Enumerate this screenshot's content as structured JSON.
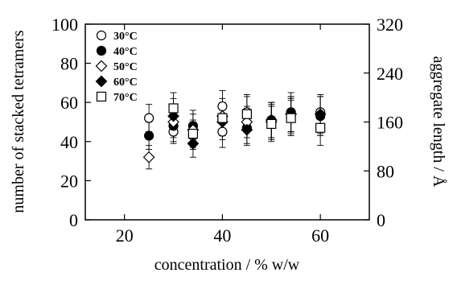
{
  "chart_data": {
    "type": "scatter",
    "xlabel": "concentration / % w/w",
    "ylabel": "number of stacked tetramers",
    "y2label": "aggregate length / Å",
    "xlim": [
      12,
      70
    ],
    "ylim": [
      0,
      100
    ],
    "y2lim": [
      0,
      320
    ],
    "xticks": [
      "20",
      "40",
      "60"
    ],
    "yticks": [
      "0",
      "20",
      "40",
      "60",
      "80",
      "100"
    ],
    "y2ticks": [
      "0",
      "80",
      "160",
      "240",
      "320"
    ],
    "grid": false,
    "legend_position": "top-left",
    "series": [
      {
        "name": "30°C",
        "marker": "circle-open",
        "points": [
          {
            "x": 25,
            "y": 52,
            "err": 7
          },
          {
            "x": 30,
            "y": 45,
            "err": 6
          },
          {
            "x": 34,
            "y": 43,
            "err": 7
          },
          {
            "x": 40,
            "y": 58,
            "err": 8
          },
          {
            "x": 40,
            "y": 45,
            "err": 8
          },
          {
            "x": 45,
            "y": 55,
            "err": 9
          },
          {
            "x": 50,
            "y": 50,
            "err": 8
          },
          {
            "x": 54,
            "y": 53,
            "err": 9
          },
          {
            "x": 60,
            "y": 55,
            "err": 8
          }
        ]
      },
      {
        "name": "40°C",
        "marker": "circle-filled",
        "points": [
          {
            "x": 25,
            "y": 43,
            "err": 7
          },
          {
            "x": 30,
            "y": 48,
            "err": 8
          },
          {
            "x": 34,
            "y": 48,
            "err": 8
          },
          {
            "x": 40,
            "y": 51,
            "err": 8
          },
          {
            "x": 45,
            "y": 47,
            "err": 8
          },
          {
            "x": 50,
            "y": 51,
            "err": 9
          },
          {
            "x": 54,
            "y": 55,
            "err": 10
          },
          {
            "x": 60,
            "y": 53,
            "err": 10
          }
        ]
      },
      {
        "name": "50°C",
        "marker": "diamond-open",
        "points": [
          {
            "x": 25,
            "y": 32,
            "err": 6
          },
          {
            "x": 30,
            "y": 50,
            "err": 8
          },
          {
            "x": 34,
            "y": 46,
            "err": 8
          },
          {
            "x": 40,
            "y": 53,
            "err": 9
          },
          {
            "x": 45,
            "y": 50,
            "err": 8
          },
          {
            "x": 50,
            "y": 50,
            "err": 9
          },
          {
            "x": 54,
            "y": 54,
            "err": 9
          }
        ]
      },
      {
        "name": "60°C",
        "marker": "diamond-filled",
        "points": [
          {
            "x": 30,
            "y": 53,
            "err": 9
          },
          {
            "x": 34,
            "y": 39,
            "err": 7
          },
          {
            "x": 40,
            "y": 50,
            "err": 9
          },
          {
            "x": 45,
            "y": 46,
            "err": 8
          },
          {
            "x": 50,
            "y": 51,
            "err": 9
          },
          {
            "x": 54,
            "y": 54,
            "err": 9
          },
          {
            "x": 60,
            "y": 54,
            "err": 10
          }
        ]
      },
      {
        "name": "70°C",
        "marker": "square-open",
        "points": [
          {
            "x": 30,
            "y": 57,
            "err": 8
          },
          {
            "x": 34,
            "y": 44,
            "err": 7
          },
          {
            "x": 40,
            "y": 52,
            "err": 8
          },
          {
            "x": 45,
            "y": 54,
            "err": 9
          },
          {
            "x": 50,
            "y": 49,
            "err": 9
          },
          {
            "x": 54,
            "y": 52,
            "err": 9
          },
          {
            "x": 60,
            "y": 47,
            "err": 9
          }
        ]
      }
    ]
  }
}
